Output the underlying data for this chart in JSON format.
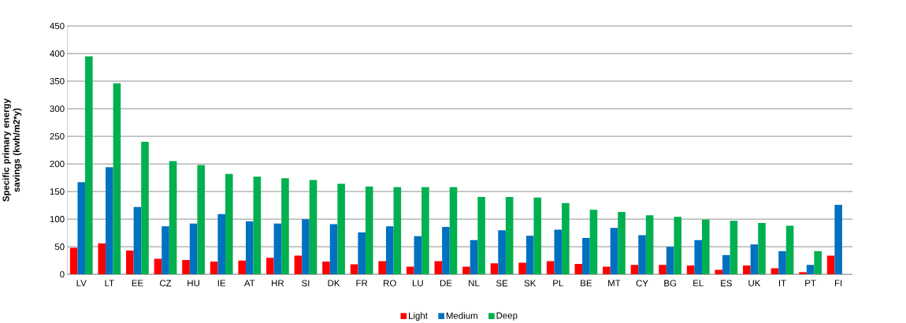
{
  "chart_data": {
    "type": "bar",
    "ylabel": "Specific primary energy savings (kwh/m2*y)",
    "categories": [
      "LV",
      "LT",
      "EE",
      "CZ",
      "HU",
      "IE",
      "AT",
      "HR",
      "SI",
      "DK",
      "FR",
      "RO",
      "LU",
      "DE",
      "NL",
      "SE",
      "SK",
      "PL",
      "BE",
      "MT",
      "CY",
      "BG",
      "EL",
      "ES",
      "UK",
      "IT",
      "PT",
      "FI"
    ],
    "series": [
      {
        "name": "Light",
        "color": "#ff0000",
        "values": [
          48,
          56,
          43,
          28,
          26,
          23,
          25,
          30,
          34,
          23,
          18,
          24,
          14,
          24,
          14,
          20,
          21,
          24,
          19,
          14,
          17,
          17,
          16,
          8,
          16,
          11,
          4,
          34
        ]
      },
      {
        "name": "Medium",
        "color": "#0070c0",
        "values": [
          167,
          194,
          122,
          87,
          92,
          109,
          96,
          92,
          100,
          91,
          76,
          87,
          69,
          86,
          62,
          80,
          70,
          81,
          66,
          84,
          71,
          50,
          62,
          35,
          54,
          42,
          17,
          126
        ]
      },
      {
        "name": "Deep",
        "color": "#00b050",
        "values": [
          395,
          346,
          240,
          205,
          198,
          182,
          177,
          174,
          171,
          164,
          159,
          158,
          158,
          158,
          140,
          140,
          139,
          129,
          117,
          113,
          107,
          104,
          99,
          97,
          93,
          88,
          42,
          null
        ]
      }
    ],
    "ylim": [
      0,
      450
    ],
    "yticks": [
      0,
      50,
      100,
      150,
      200,
      250,
      300,
      350,
      400,
      450
    ],
    "grid": "y",
    "legend": "bottom"
  }
}
